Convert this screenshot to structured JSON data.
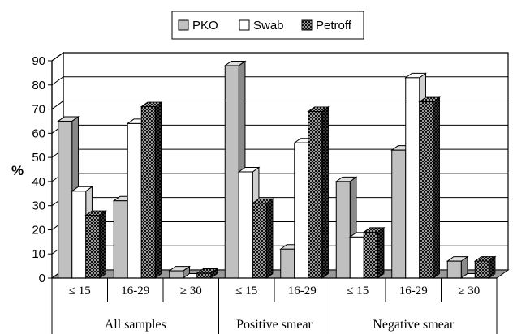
{
  "chart_data": {
    "type": "bar",
    "ylabel": "%",
    "ylim": [
      0,
      90
    ],
    "yticks": [
      0,
      10,
      20,
      30,
      40,
      50,
      60,
      70,
      80,
      90
    ],
    "grid": true,
    "three_d": true,
    "legend_position": "top-center",
    "categories": [
      "≤ 15",
      "16-29",
      "≥ 30",
      "≤ 15",
      "16-29",
      "≤ 15",
      "16-29",
      "≥ 30"
    ],
    "groups": [
      {
        "label": "All samples",
        "span": [
          0,
          2
        ]
      },
      {
        "label": "Positive smear",
        "span": [
          3,
          4
        ]
      },
      {
        "label": "Negative smear",
        "span": [
          5,
          7
        ]
      }
    ],
    "series": [
      {
        "name": "PKO",
        "color": "#c0c0c0",
        "pattern": "solid",
        "values": [
          65,
          32,
          3,
          88,
          12,
          40,
          53,
          7
        ]
      },
      {
        "name": "Swab",
        "color": "#ffffff",
        "pattern": "solid",
        "values": [
          36,
          64,
          0,
          44,
          56,
          17,
          83,
          0
        ]
      },
      {
        "name": "Petroff",
        "color": "#000000",
        "pattern": "dots",
        "values": [
          26,
          71,
          2,
          31,
          69,
          19,
          73,
          7
        ]
      }
    ]
  }
}
